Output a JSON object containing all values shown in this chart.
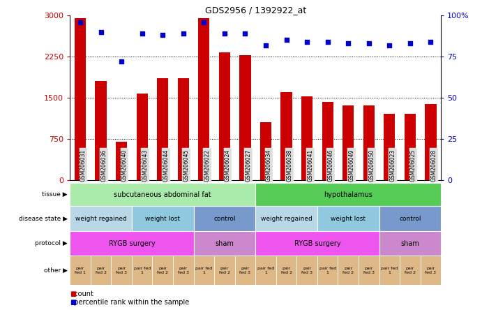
{
  "title": "GDS2956 / 1392922_at",
  "samples": [
    "GSM206031",
    "GSM206036",
    "GSM206040",
    "GSM206043",
    "GSM206044",
    "GSM206045",
    "GSM206022",
    "GSM206024",
    "GSM206027",
    "GSM206034",
    "GSM206038",
    "GSM206041",
    "GSM206046",
    "GSM206049",
    "GSM206050",
    "GSM206023",
    "GSM206025",
    "GSM206028"
  ],
  "counts": [
    2950,
    1800,
    700,
    1570,
    1850,
    1850,
    2950,
    2330,
    2270,
    1050,
    1600,
    1530,
    1420,
    1360,
    1360,
    1200,
    1200,
    1380
  ],
  "percentile_ranks": [
    96,
    90,
    72,
    89,
    88,
    89,
    96,
    89,
    89,
    82,
    85,
    84,
    84,
    83,
    83,
    82,
    83,
    84
  ],
  "ylim_left": [
    0,
    3000
  ],
  "ylim_right": [
    0,
    100
  ],
  "yticks_left": [
    0,
    750,
    1500,
    2250,
    3000
  ],
  "yticks_right": [
    0,
    25,
    50,
    75,
    100
  ],
  "bar_color": "#cc0000",
  "dot_color": "#0000cc",
  "tissue_segments": [
    {
      "text": "subcutaneous abdominal fat",
      "start": 0,
      "end": 9,
      "color": "#aaeaaa"
    },
    {
      "text": "hypothalamus",
      "start": 9,
      "end": 18,
      "color": "#55cc55"
    }
  ],
  "disease_segments": [
    {
      "text": "weight regained",
      "start": 0,
      "end": 3,
      "color": "#b8d8e8"
    },
    {
      "text": "weight lost",
      "start": 3,
      "end": 6,
      "color": "#90c8e0"
    },
    {
      "text": "control",
      "start": 6,
      "end": 9,
      "color": "#7799cc"
    },
    {
      "text": "weight regained",
      "start": 9,
      "end": 12,
      "color": "#b8d8e8"
    },
    {
      "text": "weight lost",
      "start": 12,
      "end": 15,
      "color": "#90c8e0"
    },
    {
      "text": "control",
      "start": 15,
      "end": 18,
      "color": "#7799cc"
    }
  ],
  "protocol_segments": [
    {
      "text": "RYGB surgery",
      "start": 0,
      "end": 6,
      "color": "#ee55ee"
    },
    {
      "text": "sham",
      "start": 6,
      "end": 9,
      "color": "#cc88cc"
    },
    {
      "text": "RYGB surgery",
      "start": 9,
      "end": 15,
      "color": "#ee55ee"
    },
    {
      "text": "sham",
      "start": 15,
      "end": 18,
      "color": "#cc88cc"
    }
  ],
  "other_cells": [
    "pair\nfed 1",
    "pair\nfed 2",
    "pair\nfed 3",
    "pair fed\n1",
    "pair\nfed 2",
    "pair\nfed 3",
    "pair fed\n1",
    "pair\nfed 2",
    "pair\nfed 3",
    "pair fed\n1",
    "pair\nfed 2",
    "pair\nfed 3",
    "pair fed\n1",
    "pair\nfed 2",
    "pair\nfed 3",
    "pair fed\n1",
    "pair\nfed 2",
    "pair\nfed 3"
  ],
  "other_color": "#deb887",
  "row_labels": [
    "tissue",
    "disease state",
    "protocol",
    "other"
  ],
  "bg_color": "#ffffff",
  "xtick_bg": "#dddddd"
}
